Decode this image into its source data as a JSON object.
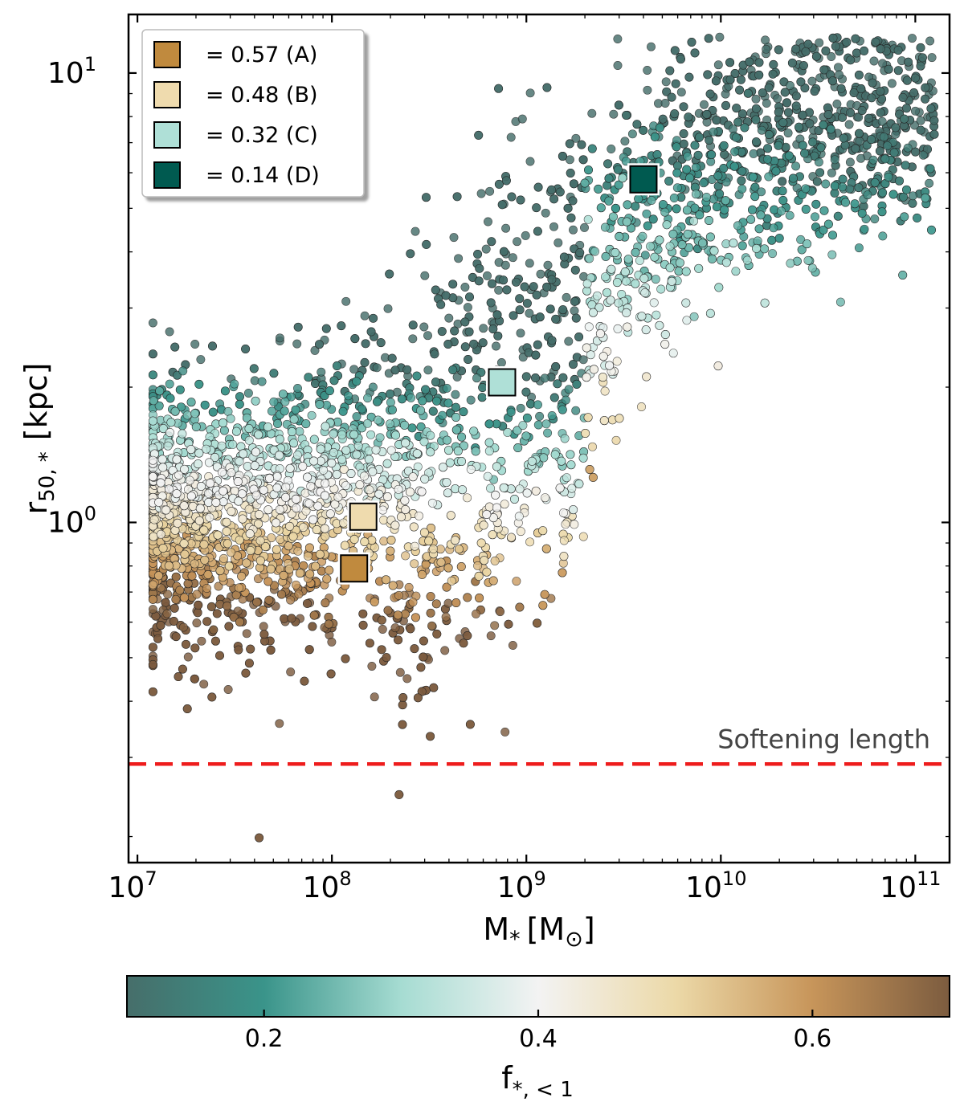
{
  "chart_data": {
    "type": "scatter",
    "xscale": "log",
    "yscale": "log",
    "xlim": [
      9000000,
      150000000000
    ],
    "ylim": [
      0.175,
      13.5
    ],
    "xlabel": "M",
    "xlabel_sub": "*",
    "xlabel_unit_open": "[M",
    "xlabel_unit_sub": "⊙",
    "xlabel_unit_close": "]",
    "ylabel_main": "r",
    "ylabel_sub": "50, *",
    "ylabel_unit": "[kpc]",
    "x_ticks": [
      {
        "base": "10",
        "exp": "7",
        "value": 10000000
      },
      {
        "base": "10",
        "exp": "8",
        "value": 100000000
      },
      {
        "base": "10",
        "exp": "9",
        "value": 1000000000
      },
      {
        "base": "10",
        "exp": "10",
        "value": 10000000000
      },
      {
        "base": "10",
        "exp": "11",
        "value": 100000000000
      }
    ],
    "y_ticks": [
      {
        "base": "10",
        "exp": "0",
        "value": 1
      },
      {
        "base": "10",
        "exp": "1",
        "value": 10
      }
    ],
    "softening_line": {
      "y": 0.29,
      "label": "Softening length",
      "color": "#ee1c1c"
    },
    "highlighted": [
      {
        "label": "= 0.57 (A)",
        "f": 0.57,
        "x": 130000000,
        "y": 0.79,
        "color": "#c08a3e"
      },
      {
        "label": "= 0.48 (B)",
        "f": 0.48,
        "x": 145000000,
        "y": 1.03,
        "color": "#efdbae"
      },
      {
        "label": "= 0.32 (C)",
        "f": 0.32,
        "x": 750000000,
        "y": 2.05,
        "color": "#afe0d7"
      },
      {
        "label": "= 0.14 (D)",
        "f": 0.14,
        "x": 4000000000,
        "y": 5.8,
        "color": "#005a50"
      }
    ],
    "population": {
      "description_note": "dense cloud of galaxies; mean log10 r50 vs log10 M*",
      "trend": [
        {
          "logm": 7.05,
          "logr_mean": 0.02,
          "logr_spread": 0.13
        },
        {
          "logm": 7.5,
          "logr_mean": 0.02,
          "logr_spread": 0.15
        },
        {
          "logm": 8.0,
          "logr_mean": 0.06,
          "logr_spread": 0.16
        },
        {
          "logm": 8.5,
          "logr_mean": 0.18,
          "logr_spread": 0.2
        },
        {
          "logm": 9.0,
          "logr_mean": 0.38,
          "logr_spread": 0.24
        },
        {
          "logm": 9.5,
          "logr_mean": 0.62,
          "logr_spread": 0.17
        },
        {
          "logm": 10.0,
          "logr_mean": 0.78,
          "logr_spread": 0.14
        },
        {
          "logm": 10.5,
          "logr_mean": 0.86,
          "logr_spread": 0.13
        },
        {
          "logm": 11.05,
          "logr_mean": 0.9,
          "logr_spread": 0.12
        }
      ],
      "count": 5200
    },
    "colorbar": {
      "label_main": "f",
      "label_sub": "*, < 1",
      "range": [
        0.1,
        0.7
      ],
      "ticks": [
        {
          "value": 0.2,
          "label": "0.2"
        },
        {
          "value": 0.4,
          "label": "0.4"
        },
        {
          "value": 0.6,
          "label": "0.6"
        }
      ],
      "stops": [
        {
          "f": 0.1,
          "color": "#466e6a"
        },
        {
          "f": 0.2,
          "color": "#3a948a"
        },
        {
          "f": 0.3,
          "color": "#a6dcd2"
        },
        {
          "f": 0.4,
          "color": "#f3f3f3"
        },
        {
          "f": 0.5,
          "color": "#ecd9a8"
        },
        {
          "f": 0.6,
          "color": "#c7955a"
        },
        {
          "f": 0.7,
          "color": "#7c5c3f"
        }
      ]
    }
  }
}
